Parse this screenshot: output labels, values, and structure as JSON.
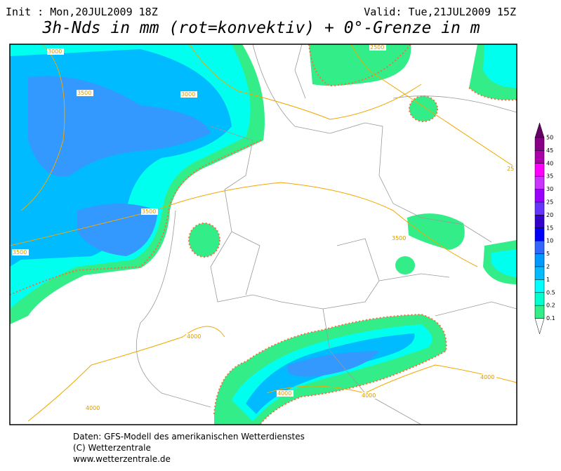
{
  "header": {
    "init": "Init : Mon,20JUL2009 18Z",
    "valid": "Valid: Tue,21JUL2009 15Z",
    "title": "3h-Nds in mm (rot=konvektiv) + 0°-Grenze in m"
  },
  "map": {
    "contour_labels": [
      "3000",
      "3500",
      "3000",
      "3500",
      "3500",
      "2500",
      "3500",
      "4000",
      "4000",
      "4000",
      "4000",
      "4000",
      "25"
    ]
  },
  "legend": {
    "labels": [
      "50",
      "45",
      "40",
      "35",
      "30",
      "25",
      "20",
      "15",
      "10",
      "5",
      "2",
      "1",
      "0.5",
      "0.2",
      "0.1"
    ],
    "colors": [
      "#660066",
      "#880088",
      "#aa00aa",
      "#ff00ff",
      "#cc33ff",
      "#9900ff",
      "#6633ff",
      "#3300cc",
      "#0000ff",
      "#3366ff",
      "#0099ff",
      "#00bbff",
      "#00ffff",
      "#00ffcc",
      "#33ee88"
    ]
  },
  "footer": {
    "lines": [
      "Daten: GFS-Modell des amerikanischen Wetterdienstes",
      "(C) Wetterzentrale",
      "www.wetterzentrale.de"
    ]
  }
}
